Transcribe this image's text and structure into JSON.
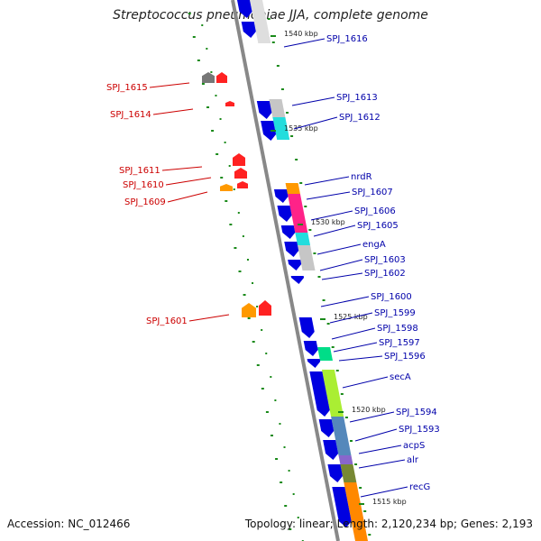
{
  "title": "Streptococcus pneumoniae JJA, complete genome",
  "footer": {
    "accession": "Accession: NC_012466",
    "summary": "Topology: linear; Length: 2,120,234 bp; Genes: 2,193"
  },
  "colors": {
    "forward_gene": "#e00000",
    "reverse_gene": "#0000e0",
    "label_left": "#cc0000",
    "label_right": "#0000aa",
    "backbone": "#888888",
    "tick": "#1a8a1a"
  },
  "kbp_markers": [
    "1540 kbp",
    "1535 kbp",
    "1530 kbp",
    "1525 kbp",
    "1520 kbp",
    "1515 kbp"
  ],
  "left_labels": [
    "SPJ_1615",
    "SPJ_1614",
    "SPJ_1611",
    "SPJ_1610",
    "SPJ_1609",
    "SPJ_1601"
  ],
  "right_labels": [
    "SPJ_1616",
    "SPJ_1613",
    "SPJ_1612",
    "nrdR",
    "SPJ_1607",
    "SPJ_1606",
    "SPJ_1605",
    "engA",
    "SPJ_1603",
    "SPJ_1602",
    "SPJ_1600",
    "SPJ_1599",
    "SPJ_1598",
    "SPJ_1597",
    "SPJ_1596",
    "secA",
    "SPJ_1594",
    "SPJ_1593",
    "acpS",
    "alr",
    "recG"
  ]
}
